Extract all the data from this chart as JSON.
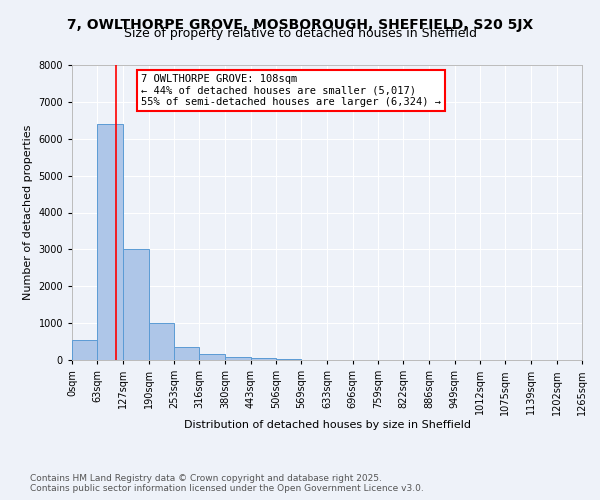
{
  "title": "7, OWLTHORPE GROVE, MOSBOROUGH, SHEFFIELD, S20 5JX",
  "subtitle": "Size of property relative to detached houses in Sheffield",
  "xlabel": "Distribution of detached houses by size in Sheffield",
  "ylabel": "Number of detached properties",
  "bin_edges": [
    0,
    63,
    127,
    190,
    253,
    316,
    380,
    443,
    506,
    569,
    633,
    696,
    759,
    822,
    886,
    949,
    1012,
    1075,
    1139,
    1202,
    1265
  ],
  "bar_heights": [
    550,
    6400,
    3000,
    1000,
    350,
    150,
    80,
    50,
    20,
    5,
    3,
    2,
    1,
    1,
    0,
    0,
    0,
    0,
    0,
    0
  ],
  "bar_color": "#aec6e8",
  "bar_edgecolor": "#5b9bd5",
  "vline_x": 108,
  "vline_color": "red",
  "ylim": [
    0,
    8000
  ],
  "yticks": [
    0,
    1000,
    2000,
    3000,
    4000,
    5000,
    6000,
    7000,
    8000
  ],
  "annotation_text": "7 OWLTHORPE GROVE: 108sqm\n← 44% of detached houses are smaller (5,017)\n55% of semi-detached houses are larger (6,324) →",
  "annotation_box_color": "white",
  "annotation_box_edgecolor": "red",
  "footnote1": "Contains HM Land Registry data © Crown copyright and database right 2025.",
  "footnote2": "Contains public sector information licensed under the Open Government Licence v3.0.",
  "background_color": "#eef2f9",
  "grid_color": "white",
  "title_fontsize": 10,
  "subtitle_fontsize": 9,
  "label_fontsize": 8,
  "tick_fontsize": 7,
  "footnote_fontsize": 6.5,
  "annotation_fontsize": 7.5
}
